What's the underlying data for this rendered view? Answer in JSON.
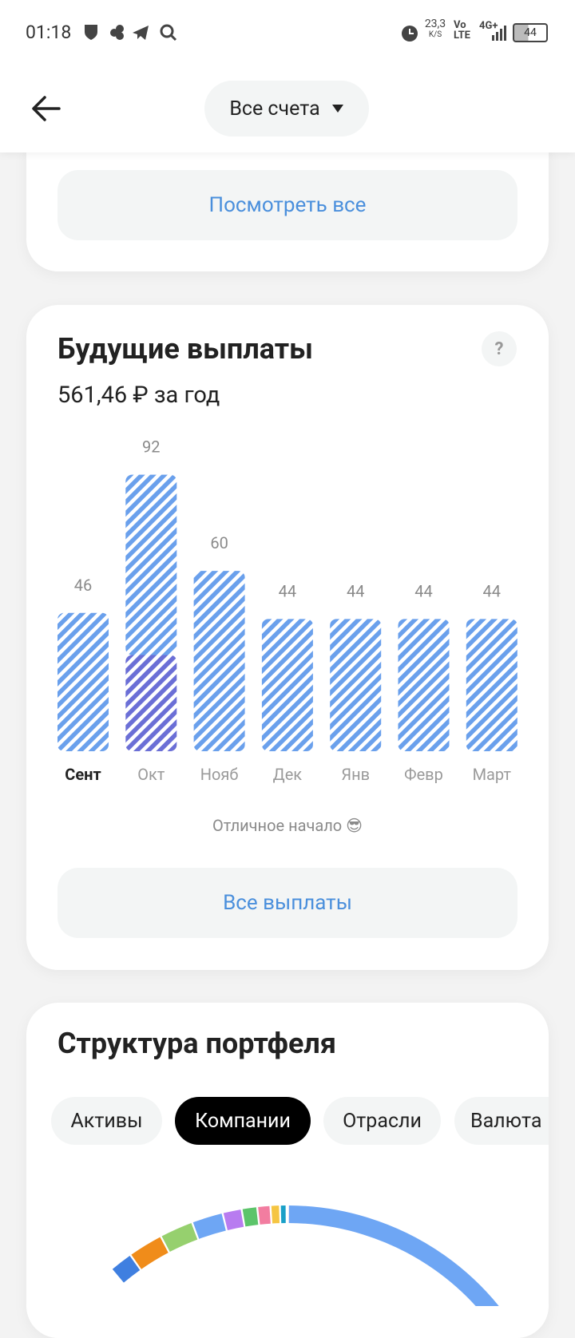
{
  "status_bar": {
    "time": "01:18",
    "speed": "23,3",
    "speed_unit": "K/S",
    "volte_top": "Vo",
    "volte_bottom": "LTE",
    "network": "4G+",
    "battery": "44"
  },
  "header": {
    "account_selector": "Все счета"
  },
  "top_card": {
    "button": "Посмотреть все"
  },
  "payouts_card": {
    "title": "Будущие выплаты",
    "help": "?",
    "subtitle": "561,46 ₽ за год",
    "chart": {
      "type": "bar",
      "categories": [
        "Сент",
        "Окт",
        "Нояб",
        "Дек",
        "Янв",
        "Февр",
        "Март"
      ],
      "totals": [
        46,
        92,
        60,
        44,
        44,
        44,
        44
      ],
      "series": [
        {
          "color": "#6b6fd6",
          "values": [
            null,
            32,
            null,
            null,
            null,
            null,
            null
          ]
        },
        {
          "color": "#6aa0ec",
          "values": [
            46,
            60,
            60,
            44,
            44,
            44,
            44
          ]
        }
      ],
      "ylim": [
        0,
        100
      ]
    },
    "note": "Отличное начало 😎",
    "button": "Все выплаты"
  },
  "structure_card": {
    "title": "Структура портфеля",
    "tabs": [
      "Активы",
      "Компании",
      "Отрасли",
      "Валюта"
    ]
  }
}
